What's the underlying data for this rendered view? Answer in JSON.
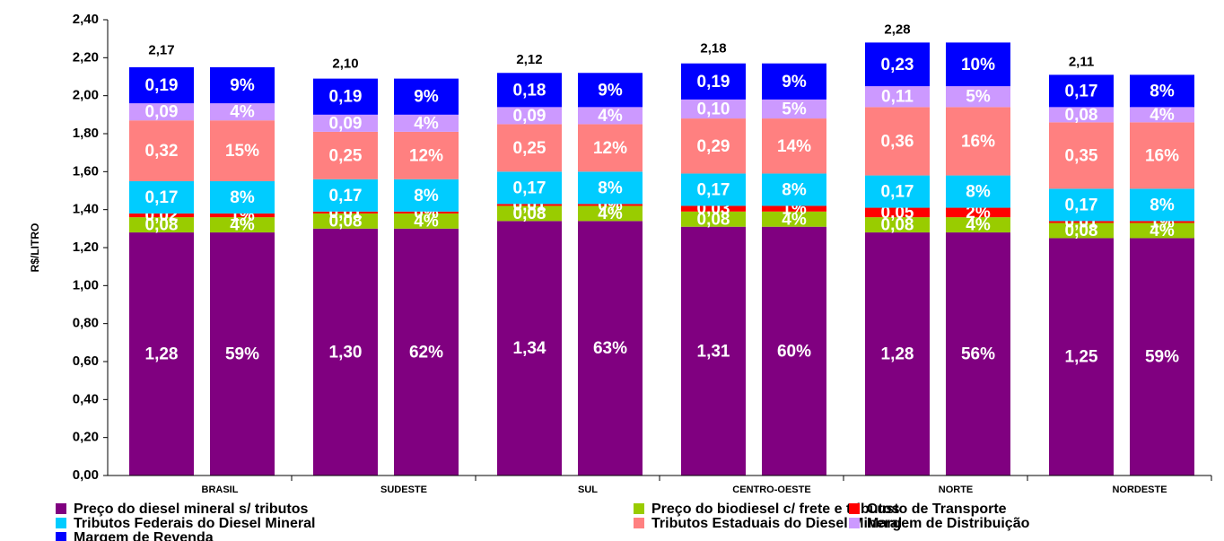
{
  "chart_data": {
    "type": "bar",
    "stacked": true,
    "y_label": "R$/LITRO",
    "categories": [
      "BRASIL",
      "SUDESTE",
      "SUL",
      "CENTRO-OESTE",
      "NORTE",
      "NORDESTE"
    ],
    "ylim": [
      0,
      2.4
    ],
    "yticks": [
      {
        "value": 0,
        "label": "0,00"
      },
      {
        "value": 0.2,
        "label": "0,20"
      },
      {
        "value": 0.4,
        "label": "0,40"
      },
      {
        "value": 0.6,
        "label": "0,60"
      },
      {
        "value": 0.8,
        "label": "0,80"
      },
      {
        "value": 1.0,
        "label": "1,00"
      },
      {
        "value": 1.2,
        "label": "1,20"
      },
      {
        "value": 1.4,
        "label": "1,40"
      },
      {
        "value": 1.6,
        "label": "1,60"
      },
      {
        "value": 1.8,
        "label": "1,80"
      },
      {
        "value": 2.0,
        "label": "2,00"
      },
      {
        "value": 2.2,
        "label": "2,20"
      },
      {
        "value": 2.4,
        "label": "2,40"
      }
    ],
    "totals": [
      2.17,
      2.1,
      2.12,
      2.18,
      2.28,
      2.11
    ],
    "total_labels": [
      "2,17",
      "2,10",
      "2,12",
      "2,18",
      "2,28",
      "2,11"
    ],
    "series": [
      {
        "name": "Preço do diesel mineral s/ tributos",
        "color": "#800080",
        "values": [
          1.28,
          1.3,
          1.34,
          1.31,
          1.28,
          1.25
        ],
        "value_labels": [
          "1,28",
          "1,30",
          "1,34",
          "1,31",
          "1,28",
          "1,25"
        ],
        "share_labels": [
          "59%",
          "62%",
          "63%",
          "60%",
          "56%",
          "59%"
        ]
      },
      {
        "name": "Preço do biodiesel c/ frete e tributos",
        "color": "#99cc00",
        "values": [
          0.08,
          0.08,
          0.08,
          0.08,
          0.08,
          0.08
        ],
        "value_labels": [
          "0,08",
          "0,08",
          "0,08",
          "0,08",
          "0,08",
          "0,08"
        ],
        "share_labels": [
          "4%",
          "4%",
          "4%",
          "4%",
          "4%",
          "4%"
        ]
      },
      {
        "name": "Custo de Transporte",
        "color": "#ff0000",
        "values": [
          0.02,
          0.01,
          0.01,
          0.03,
          0.05,
          0.01
        ],
        "value_labels": [
          "0,02",
          "0,01",
          "0,01",
          "0,03",
          "0,05",
          "0,01"
        ],
        "share_labels": [
          "1%",
          "0%",
          "0%",
          "1%",
          "2%",
          "1%"
        ]
      },
      {
        "name": "Tributos Federais do Diesel Mineral",
        "color": "#00ccff",
        "values": [
          0.17,
          0.17,
          0.17,
          0.17,
          0.17,
          0.17
        ],
        "value_labels": [
          "0,17",
          "0,17",
          "0,17",
          "0,17",
          "0,17",
          "0,17"
        ],
        "share_labels": [
          "8%",
          "8%",
          "8%",
          "8%",
          "8%",
          "8%"
        ]
      },
      {
        "name": "Tributos Estaduais do Diesel Mineral",
        "color": "#ff8080",
        "values": [
          0.32,
          0.25,
          0.25,
          0.29,
          0.36,
          0.35
        ],
        "value_labels": [
          "0,32",
          "0,25",
          "0,25",
          "0,29",
          "0,36",
          "0,35"
        ],
        "share_labels": [
          "15%",
          "12%",
          "12%",
          "14%",
          "16%",
          "16%"
        ]
      },
      {
        "name": "Margem de Distribuição",
        "color": "#cc99ff",
        "values": [
          0.09,
          0.09,
          0.09,
          0.1,
          0.11,
          0.08
        ],
        "value_labels": [
          "0,09",
          "0,09",
          "0,09",
          "0,10",
          "0,11",
          "0,08"
        ],
        "share_labels": [
          "4%",
          "4%",
          "4%",
          "5%",
          "5%",
          "4%"
        ]
      },
      {
        "name": "Margem de Revenda",
        "color": "#0000ff",
        "values": [
          0.19,
          0.19,
          0.18,
          0.19,
          0.23,
          0.17
        ],
        "value_labels": [
          "0,19",
          "0,19",
          "0,18",
          "0,19",
          "0,23",
          "0,17"
        ],
        "share_labels": [
          "9%",
          "9%",
          "9%",
          "9%",
          "10%",
          "8%"
        ]
      }
    ]
  }
}
